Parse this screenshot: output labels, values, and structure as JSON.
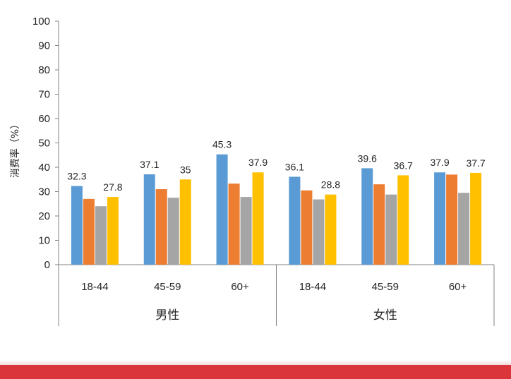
{
  "colors": {
    "series": [
      "#5B9BD5",
      "#ED7D31",
      "#A5A5A5",
      "#FFC000"
    ],
    "axis": "#808080",
    "text": "#262626",
    "band": "#D9353A"
  },
  "chart_data": {
    "type": "bar",
    "title": "",
    "ylabel": "消费率（%）",
    "xlabel": "",
    "ylim": [
      0,
      100
    ],
    "yticks": [
      "0",
      "10",
      "20",
      "30",
      "40",
      "50",
      "60",
      "70",
      "80",
      "90",
      "100"
    ],
    "groups": [
      {
        "label": "男性",
        "categories": [
          "18-44",
          "45-59",
          "60+"
        ]
      },
      {
        "label": "女性",
        "categories": [
          "18-44",
          "45-59",
          "60+"
        ]
      }
    ],
    "categories": [
      "18-44",
      "45-59",
      "60+",
      "18-44",
      "45-59",
      "60+"
    ],
    "series": [
      {
        "values": [
          32.3,
          37.1,
          45.3,
          36.1,
          39.6,
          37.9
        ],
        "labels": [
          "32.3",
          "37.1",
          "45.3",
          "36.1",
          "39.6",
          "37.9"
        ]
      },
      {
        "values": [
          27,
          31,
          33.3,
          30.5,
          33,
          37
        ]
      },
      {
        "values": [
          24,
          27.5,
          27.8,
          26.8,
          28.8,
          29.5
        ]
      },
      {
        "values": [
          27.8,
          35,
          37.9,
          28.8,
          36.7,
          37.7
        ],
        "labels": [
          "27.8",
          "35",
          "37.9",
          "28.8",
          "36.7",
          "37.7"
        ]
      }
    ],
    "legend": "none",
    "grid": false
  }
}
